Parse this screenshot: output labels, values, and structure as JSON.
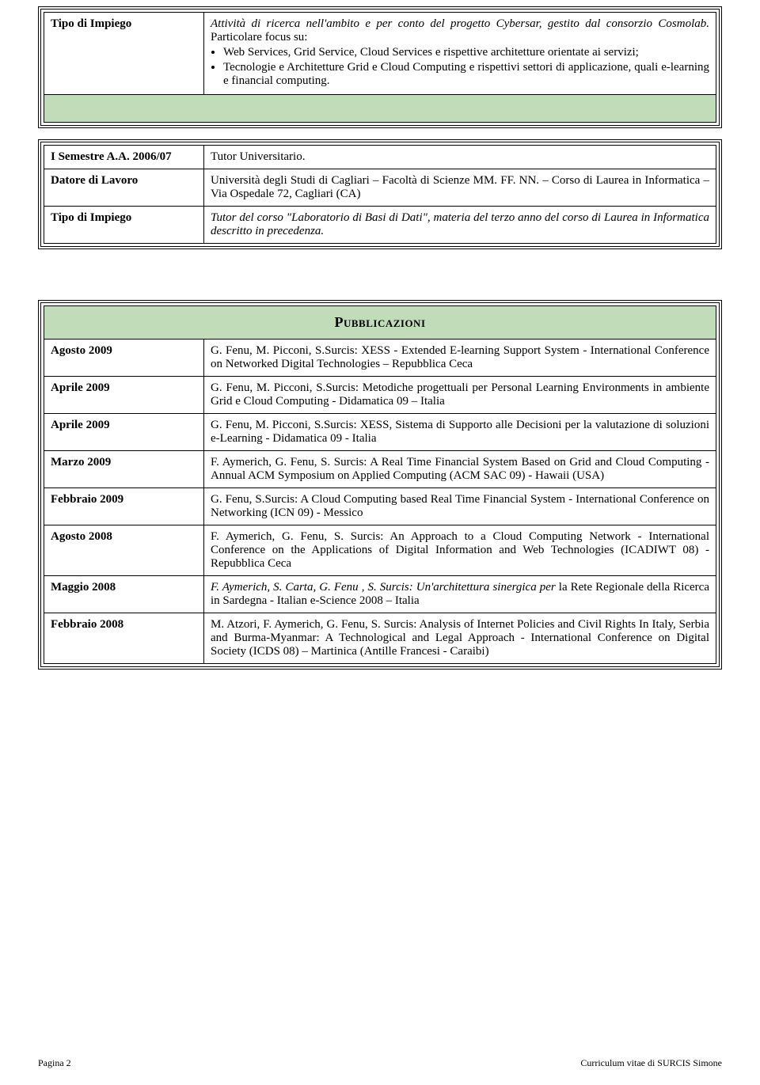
{
  "colors": {
    "header_bg": "#c0dcb8",
    "text": "#000000",
    "page_bg": "#ffffff",
    "border": "#000000"
  },
  "block1": {
    "label": "Tipo di Impiego",
    "intro": "Attività di ricerca nell'ambito e per conto del progetto Cybersar, gestito dal consorzio Cosmolab.",
    "lead": "Particolare focus su:",
    "b1": "Web Services, Grid Service, Cloud Services e rispettive architetture orientate ai servizi;",
    "b2": "Tecnologie e Architetture Grid e Cloud Computing e rispettivi settori di applicazione, quali e-learning e financial computing."
  },
  "block2": {
    "r1_label": "I Semestre A.A. 2006/07",
    "r1_value": "Tutor Universitario.",
    "r2_label": "Datore di Lavoro",
    "r2_value": "Università degli Studi di Cagliari – Facoltà di Scienze MM. FF. NN. – Corso di Laurea in Informatica – Via Ospedale 72, Cagliari (CA)",
    "r3_label": "Tipo di Impiego",
    "r3_value": "Tutor del corso \"Laboratorio di Basi di Dati\", materia del terzo anno del corso di Laurea in Informatica descritto in precedenza."
  },
  "pubs": {
    "title": "Pubblicazioni",
    "rows": [
      {
        "date": "Agosto 2009",
        "text": "G. Fenu, M. Picconi, S.Surcis: XESS - Extended E-learning Support System - International Conference on Networked Digital Technologies – Repubblica Ceca"
      },
      {
        "date": "Aprile 2009",
        "text": "G. Fenu, M. Picconi, S.Surcis: Metodiche progettuali per Personal Learning Environments in ambiente Grid e Cloud Computing - Didamatica 09 – Italia"
      },
      {
        "date": "Aprile 2009",
        "text": "G. Fenu, M. Picconi, S.Surcis: XESS, Sistema di Supporto alle Decisioni per la valutazione di soluzioni e-Learning - Didamatica 09 - Italia"
      },
      {
        "date": "Marzo 2009",
        "text": "F. Aymerich, G. Fenu, S. Surcis: A Real Time Financial System Based on Grid and Cloud Computing - Annual ACM Symposium on Applied Computing (ACM SAC 09) - Hawaii (USA)"
      },
      {
        "date": "Febbraio 2009",
        "text": "G. Fenu, S.Surcis: A Cloud Computing based Real Time Financial System - International Conference on Networking (ICN 09) - Messico"
      },
      {
        "date": "Agosto 2008",
        "text": "F. Aymerich, G. Fenu, S. Surcis: An Approach to a Cloud Computing Network - International Conference on the Applications of Digital Information and Web Technologies (ICADIWT 08) - Repubblica Ceca"
      },
      {
        "date": "Maggio 2008",
        "text_italic_part": "F. Aymerich, S. Carta, G. Fenu , S. Surcis: Un'architettura sinergica per ",
        "text_rest": "la Rete Regionale della Ricerca in Sardegna - Italian e-Science 2008 – Italia"
      },
      {
        "date": "Febbraio 2008",
        "text": "M. Atzori, F. Aymerich, G. Fenu, S. Surcis: Analysis of Internet Policies and Civil Rights In Italy, Serbia and Burma-Myanmar: A Technological and Legal Approach - International Conference on Digital Society (ICDS 08) – Martinica (Antille Francesi - Caraibi)"
      }
    ]
  },
  "footer": {
    "left": "Pagina 2",
    "right": "Curriculum vitae di SURCIS Simone"
  }
}
